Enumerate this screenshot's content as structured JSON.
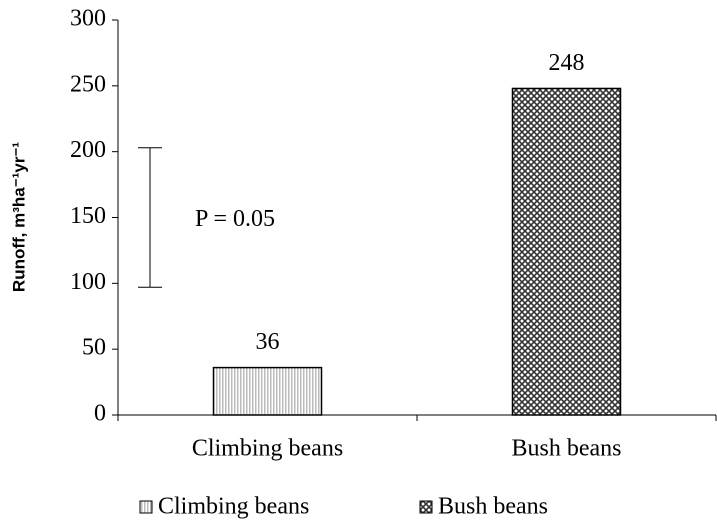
{
  "chart_data": {
    "type": "bar",
    "y_label": "Runoff, m³ha⁻¹yr⁻¹",
    "categories": [
      "Climbing beans",
      "Bush beans"
    ],
    "values": [
      36,
      248
    ],
    "colors": [
      "#c8c8c8",
      "#4a4a4a"
    ],
    "ylim": [
      0,
      300
    ],
    "yticks": [
      0,
      50,
      100,
      150,
      200,
      250,
      300
    ],
    "annotation": "P = 0.05",
    "lsd_range": [
      97,
      203
    ],
    "legend": "bottom"
  }
}
